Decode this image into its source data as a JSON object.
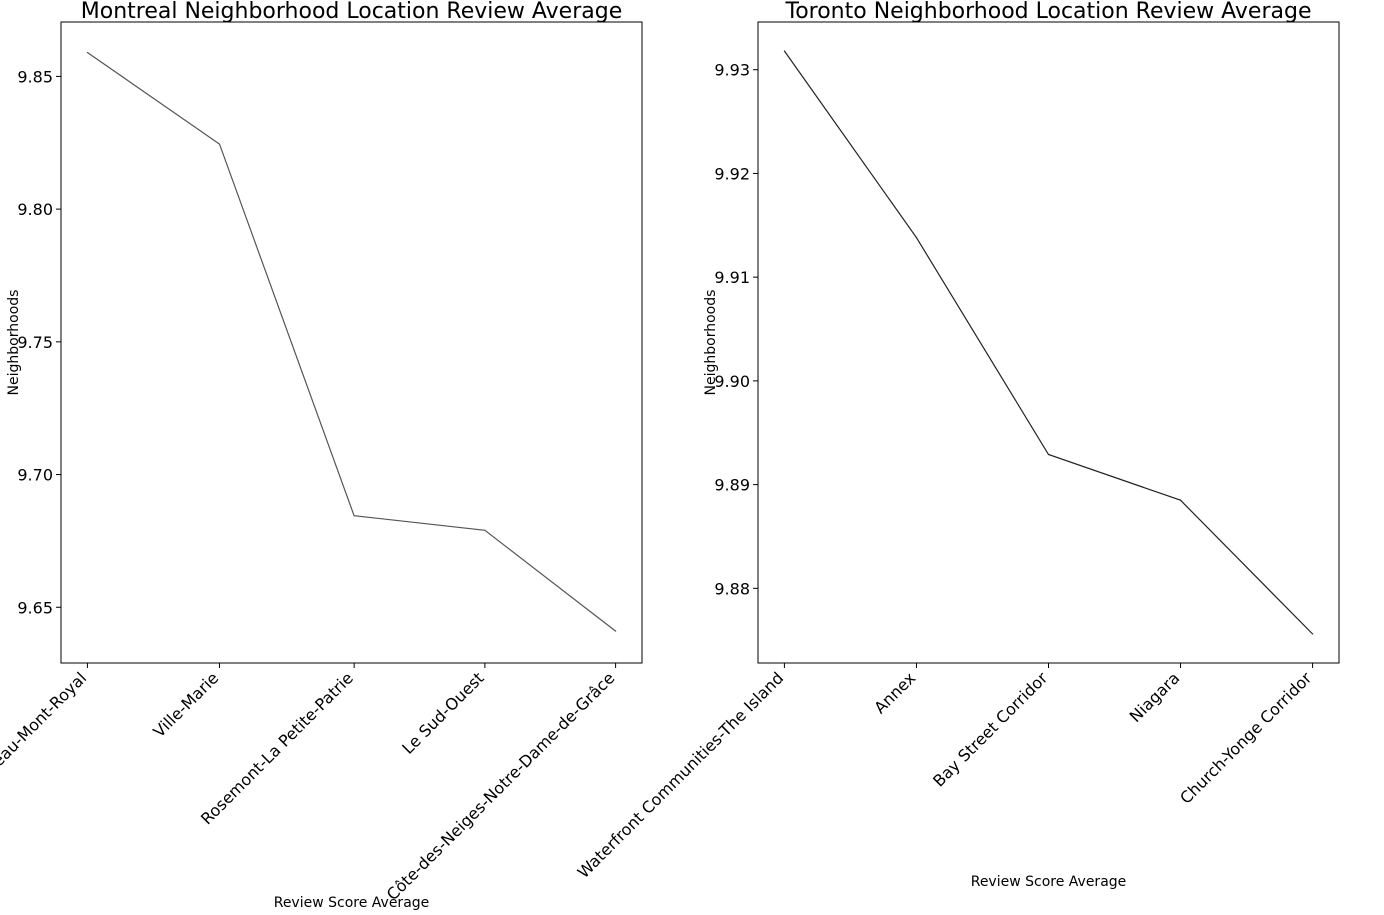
{
  "chart_data": [
    {
      "type": "line",
      "title": "Montreal Neighborhood Location  Review Average",
      "xlabel": "Review Score Average",
      "ylabel": "Neighborhoods",
      "categories": [
        "Le Plateau-Mont-Royal",
        "Ville-Marie",
        "Rosemont-La Petite-Patrie",
        "Le Sud-Ouest",
        "Côte-des-Neiges-Notre-Dame-de-Grâce"
      ],
      "x": [
        0,
        1,
        2.02,
        3.01,
        4
      ],
      "values": [
        9.859,
        9.8245,
        9.6845,
        9.679,
        9.641
      ],
      "ylim": [
        9.629,
        9.8705
      ],
      "xlim": [
        -0.2,
        4.2
      ],
      "yticks": [
        9.65,
        9.7,
        9.75,
        9.8,
        9.85
      ],
      "ytick_labels": [
        "9.65",
        "9.70",
        "9.75",
        "9.80",
        "9.85"
      ],
      "line_color": "#555555",
      "grid": false,
      "legend": false
    },
    {
      "type": "line",
      "title": "Toronto Neighborhood Location Review Average",
      "xlabel": "Review Score Average",
      "ylabel": "Neighborhoods",
      "categories": [
        "Waterfront Communities-The Island",
        "Annex",
        "Bay Street Corridor",
        "Niagara",
        "Church-Yonge Corridor"
      ],
      "x": [
        0,
        1,
        2,
        3,
        4
      ],
      "values": [
        9.9318,
        9.9138,
        9.8929,
        9.8885,
        9.8756
      ],
      "ylim": [
        9.8728,
        9.9346
      ],
      "xlim": [
        -0.2,
        4.2
      ],
      "yticks": [
        9.88,
        9.89,
        9.9,
        9.91,
        9.92,
        9.93
      ],
      "ytick_labels": [
        "9.88",
        "9.89",
        "9.90",
        "9.91",
        "9.92",
        "9.93"
      ],
      "line_color": "#222222",
      "grid": false,
      "legend": false
    }
  ]
}
